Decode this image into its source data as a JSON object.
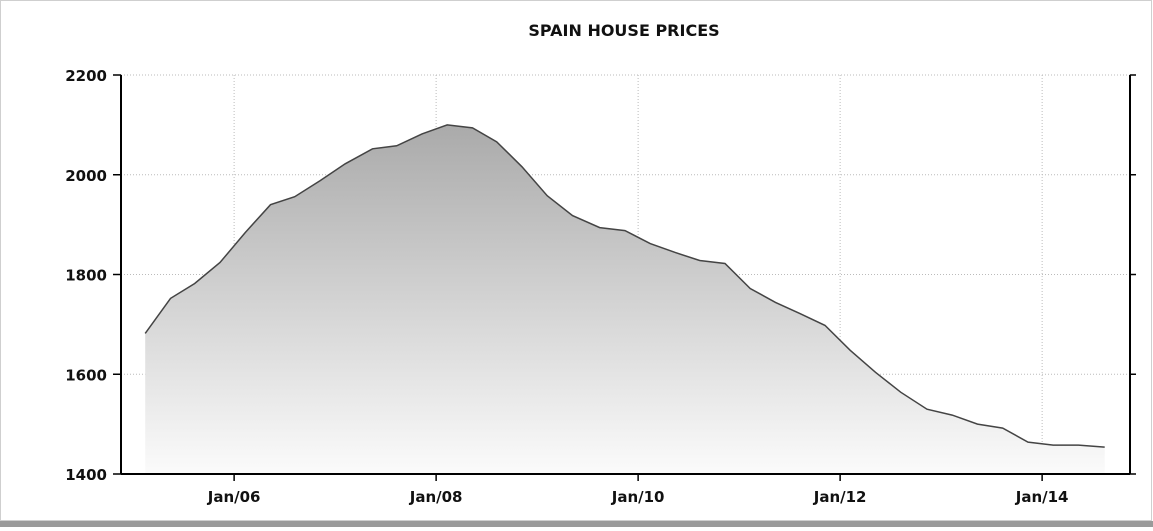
{
  "chart_data": {
    "type": "area",
    "title": "SPAIN HOUSE PRICES",
    "x": [
      2005.12,
      2005.37,
      2005.61,
      2005.86,
      2006.11,
      2006.36,
      2006.6,
      2006.85,
      2007.1,
      2007.37,
      2007.61,
      2007.86,
      2008.11,
      2008.36,
      2008.6,
      2008.85,
      2009.1,
      2009.35,
      2009.62,
      2009.87,
      2010.12,
      2010.37,
      2010.61,
      2010.86,
      2011.11,
      2011.36,
      2011.6,
      2011.85,
      2012.1,
      2012.35,
      2012.6,
      2012.86,
      2013.11,
      2013.36,
      2013.61,
      2013.86,
      2014.11,
      2014.36,
      2014.62
    ],
    "values": [
      1682,
      1752,
      1782,
      1824,
      1884,
      1940,
      1956,
      1988,
      2022,
      2052,
      2058,
      2082,
      2100,
      2094,
      2066,
      2016,
      1958,
      1918,
      1894,
      1888,
      1862,
      1844,
      1828,
      1822,
      1772,
      1744,
      1722,
      1698,
      1648,
      1604,
      1564,
      1530,
      1518,
      1500,
      1492,
      1464,
      1458,
      1458,
      1454
    ],
    "color": "#444444",
    "xlim": [
      2004.88,
      2014.87
    ],
    "xticks": [
      {
        "value": 2006,
        "label": "Jan/06"
      },
      {
        "value": 2008,
        "label": "Jan/08"
      },
      {
        "value": 2010,
        "label": "Jan/10"
      },
      {
        "value": 2012,
        "label": "Jan/12"
      },
      {
        "value": 2014,
        "label": "Jan/14"
      }
    ],
    "ylim": [
      1400,
      2200
    ],
    "yticks": [
      1400,
      1600,
      1800,
      2000,
      2200
    ],
    "grid": true
  }
}
